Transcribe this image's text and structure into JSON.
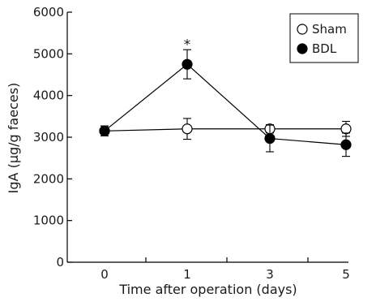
{
  "chart_data": {
    "type": "line",
    "categories": [
      "0",
      "1",
      "3",
      "5"
    ],
    "xlabel": "Time after operation (days)",
    "ylabel": "IgA (µg/g faeces)",
    "ylim": [
      0,
      6000
    ],
    "yticks": [
      0,
      1000,
      2000,
      3000,
      4000,
      5000,
      6000
    ],
    "grid": false,
    "legend_position": "top-right",
    "series": [
      {
        "name": "Sham",
        "marker": "open-circle",
        "color": "#000000",
        "values": [
          3150,
          3200,
          3200,
          3200
        ],
        "errors": [
          120,
          250,
          100,
          180
        ]
      },
      {
        "name": "BDL",
        "marker": "filled-circle",
        "color": "#000000",
        "values": [
          3150,
          4750,
          2970,
          2820
        ],
        "errors": [
          120,
          350,
          320,
          280
        ]
      }
    ],
    "annotations": [
      {
        "text": "*",
        "category": "1",
        "value": 5350
      }
    ]
  }
}
